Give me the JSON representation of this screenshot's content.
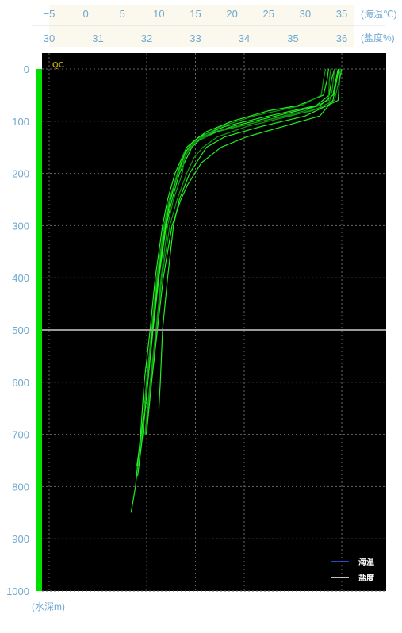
{
  "chart_data": {
    "type": "line",
    "qc_label": "QC",
    "temperature_axis": {
      "unit_label": "(海温℃)",
      "range": [
        -5,
        35
      ],
      "ticks": [
        "−5",
        "0",
        "5",
        "10",
        "15",
        "20",
        "25",
        "30",
        "35"
      ],
      "tick_values": [
        -5,
        0,
        5,
        10,
        15,
        20,
        25,
        30,
        35
      ]
    },
    "salinity_axis": {
      "unit_label": "(盐度%)",
      "range": [
        30,
        36
      ],
      "ticks": [
        "30",
        "31",
        "32",
        "33",
        "34",
        "35",
        "36"
      ],
      "tick_values": [
        30,
        31,
        32,
        33,
        34,
        35,
        36
      ]
    },
    "depth_axis": {
      "unit_label": "(水深m)",
      "range": [
        0,
        1000
      ],
      "ticks": [
        "0",
        "100",
        "200",
        "300",
        "400",
        "500",
        "600",
        "700",
        "800",
        "900",
        "1000"
      ],
      "tick_values": [
        0,
        100,
        200,
        300,
        400,
        500,
        600,
        700,
        800,
        900,
        1000
      ]
    },
    "marker_depth": 500,
    "grid": true,
    "legend": {
      "placement": "bottom-right",
      "entries": [
        {
          "name": "海温",
          "color": "#3a5cff"
        },
        {
          "name": "盐度",
          "color": "#ffffff"
        }
      ]
    },
    "colors": {
      "background": "#000000",
      "profile_bright": "#22ee22",
      "profile_dark": "#129a12",
      "grid": "#666666",
      "marker_line": "#9a9a9a",
      "depth_bar": "#00e000",
      "top_band": "#fbf8ee"
    },
    "series": [
      {
        "depth": [
          0,
          20,
          50,
          70,
          90,
          110,
          130,
          150,
          200,
          250,
          300,
          400,
          500,
          600,
          700,
          800,
          850
        ],
        "temperature": [
          34,
          33.6,
          33.3,
          31.5,
          25,
          19,
          15.5,
          13.8,
          12.2,
          11.2,
          10.5,
          9.5,
          8.8,
          8.0,
          7.5,
          6.8,
          6.2
        ]
      },
      {
        "depth": [
          0,
          20,
          60,
          80,
          100,
          120,
          140,
          160,
          200,
          250,
          300,
          400,
          500,
          600,
          700,
          760
        ],
        "temperature": [
          33.5,
          33.3,
          33.2,
          30,
          24,
          18,
          15,
          13.5,
          12.5,
          11.5,
          10.8,
          9.8,
          9.0,
          8.3,
          7.7,
          7.2
        ]
      },
      {
        "depth": [
          0,
          20,
          50,
          70,
          90,
          110,
          130,
          150,
          200,
          250,
          300,
          400,
          500,
          600,
          700,
          780
        ],
        "temperature": [
          34.5,
          34.2,
          33.8,
          32,
          26,
          20,
          16,
          14.5,
          12.8,
          11.8,
          11,
          10,
          9.2,
          8.5,
          7.8,
          7.1
        ]
      },
      {
        "depth": [
          0,
          30,
          60,
          80,
          100,
          120,
          140,
          170,
          200,
          250,
          300,
          400,
          500,
          600,
          700
        ],
        "temperature": [
          34.8,
          34.5,
          34,
          31,
          24,
          17.5,
          14.8,
          13.5,
          13.2,
          12,
          11.2,
          10.3,
          9.6,
          8.8,
          8.1
        ]
      },
      {
        "depth": [
          0,
          20,
          50,
          70,
          80,
          100,
          120,
          140,
          160,
          200,
          250,
          300,
          400,
          500,
          600,
          700,
          760
        ],
        "temperature": [
          33.2,
          33.0,
          32.5,
          29,
          25,
          20,
          16.5,
          14.6,
          13.6,
          12.6,
          11.6,
          10.9,
          9.9,
          9.1,
          8.4,
          7.6,
          7.0
        ]
      },
      {
        "depth": [
          0,
          40,
          70,
          90,
          110,
          130,
          150,
          170,
          200,
          250,
          300,
          400,
          500,
          600,
          700
        ],
        "temperature": [
          34,
          33.7,
          33.2,
          28,
          22,
          18,
          16,
          14.8,
          13.8,
          12.5,
          11.5,
          10.4,
          9.7,
          8.9,
          8.2
        ]
      },
      {
        "depth": [
          0,
          30,
          60,
          90,
          110,
          130,
          150,
          180,
          220,
          250,
          300,
          400,
          500,
          600,
          700
        ],
        "temperature": [
          34.6,
          34.2,
          33.8,
          32,
          27,
          22,
          18.5,
          15.8,
          14,
          13,
          11.8,
          10.6,
          9.8,
          9.0,
          8.3
        ]
      },
      {
        "depth": [
          0,
          20,
          50,
          70,
          90,
          110,
          130,
          150,
          200,
          250,
          300,
          400,
          500,
          600,
          650
        ],
        "temperature": [
          32.8,
          32.5,
          32.2,
          29.5,
          23,
          18.5,
          15.8,
          14.2,
          12.6,
          11.4,
          10.7,
          9.7,
          9.0,
          8.4,
          8.0
        ]
      },
      {
        "depth": [
          0,
          20,
          60,
          90,
          110,
          130,
          150,
          200,
          250,
          300,
          350,
          400,
          500,
          600,
          650
        ],
        "temperature": [
          35,
          34.7,
          34.5,
          30,
          24,
          19,
          16.5,
          14.2,
          12.8,
          12,
          11.6,
          11.2,
          10.5,
          10.2,
          10.0
        ]
      }
    ]
  }
}
